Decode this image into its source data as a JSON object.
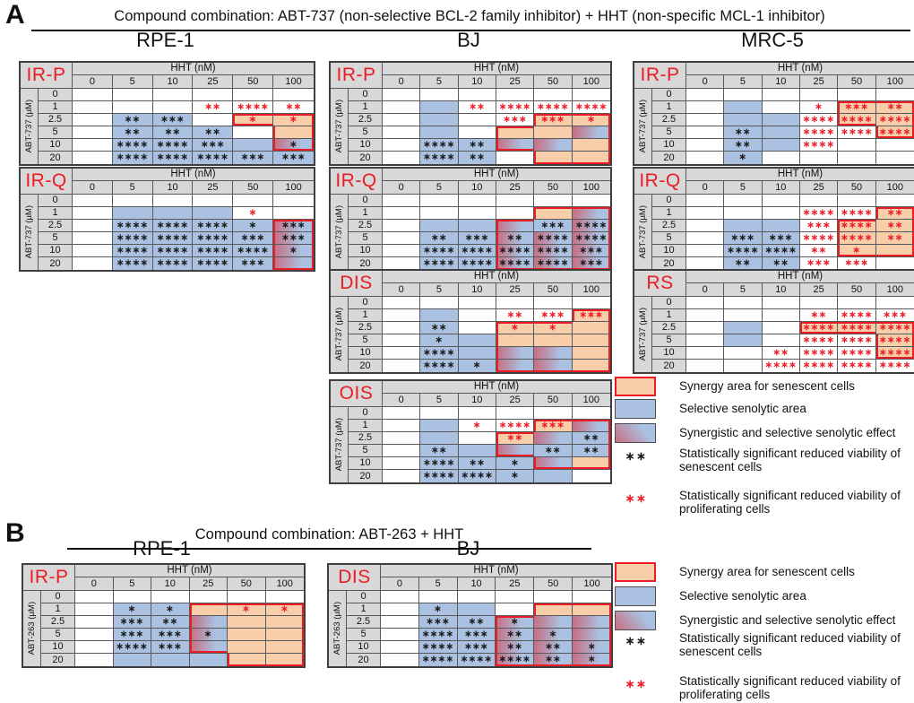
{
  "panels": [
    {
      "label": "A",
      "title": "Compound combination: ABT-737 (non-selective BCL-2 family inhibitor) + HHT (non-specific MCL-1 inhibitor)"
    },
    {
      "label": "B",
      "title": "Compound combination: ABT-263 + HHT"
    }
  ],
  "cell_line_titles": [
    {
      "panel": "A",
      "text": "RPE-1"
    },
    {
      "panel": "A",
      "text": "BJ"
    },
    {
      "panel": "A",
      "text": "MRC-5"
    },
    {
      "panel": "B",
      "text": "RPE-1"
    },
    {
      "panel": "B",
      "text": "BJ"
    }
  ],
  "axis": {
    "col_header": "HHT (nM)",
    "col_doses": [
      "0",
      "5",
      "10",
      "25",
      "50",
      "100"
    ],
    "row_doses": [
      "0",
      "1",
      "2.5",
      "5",
      "10",
      "20"
    ]
  },
  "cell_legend_note": "cell format fill|marks|markcolor|redborders ; fill w=white b=blue o=orange g=gradient ; markcolor k=black r=red ; redborders subset of TRBL",
  "tables": [
    {
      "panel": "A",
      "cell_line": "RPE-1",
      "condition": "IR-P",
      "drug": "ABT-737 (µM)",
      "cells": [
        [
          "w",
          "w",
          "w",
          "w",
          "w",
          "w"
        ],
        [
          "w",
          "w",
          "w",
          "w|**|r",
          "w|****|r",
          "w|**|r"
        ],
        [
          "w",
          "b|**|k",
          "b|***|k",
          "w",
          "o|*|r|TLB",
          "o|*|r|TR"
        ],
        [
          "w",
          "b|**|k",
          "b|**|k",
          "b|**|k",
          "w",
          "o|||LR"
        ],
        [
          "w",
          "b|****|k",
          "b|****|k",
          "b|***|k",
          "b",
          "g|*|k|LRB"
        ],
        [
          "w",
          "b|****|k",
          "b|****|k",
          "b|****|k",
          "b|***|k",
          "b|***|k"
        ]
      ]
    },
    {
      "panel": "A",
      "cell_line": "RPE-1",
      "condition": "IR-Q",
      "drug": "ABT-737 (µM)",
      "cells": [
        [
          "w",
          "w",
          "w",
          "w",
          "w",
          "w"
        ],
        [
          "w",
          "b",
          "b",
          "b",
          "w|*|r",
          "w"
        ],
        [
          "w",
          "b|****|k",
          "b|****|k",
          "b|****|k",
          "b|*|k",
          "g|***|k|TLR"
        ],
        [
          "w",
          "b|****|k",
          "b|****|k",
          "b|****|k",
          "b|***|k",
          "g|***|k|LR"
        ],
        [
          "w",
          "b|****|k",
          "b|****|k",
          "b|****|k",
          "b|****|k",
          "g|*|k|LR"
        ],
        [
          "w",
          "b|****|k",
          "b|****|k",
          "b|****|k",
          "b|***|k",
          "g|||LRB"
        ]
      ]
    },
    {
      "panel": "A",
      "cell_line": "BJ",
      "condition": "IR-P",
      "drug": "ABT-737 (µM)",
      "cells": [
        [
          "w",
          "w",
          "w",
          "w",
          "w",
          "w"
        ],
        [
          "w",
          "b",
          "w|**|r",
          "w|****|r",
          "w|****|r",
          "w|****|r"
        ],
        [
          "w",
          "b",
          "w",
          "w|***|r",
          "o|***|r|TL",
          "o|*|r|TR"
        ],
        [
          "w",
          "b",
          "w",
          "o|||TL",
          "o",
          "g|||R"
        ],
        [
          "w",
          "b|****|k",
          "b|**|k",
          "g|||LB",
          "g",
          "o|||R"
        ],
        [
          "w",
          "b|****|k",
          "b|**|k",
          "w",
          "o|||LB",
          "o|||RB"
        ]
      ]
    },
    {
      "panel": "A",
      "cell_line": "BJ",
      "condition": "IR-Q",
      "drug": "ABT-737 (µM)",
      "cells": [
        [
          "w",
          "w",
          "w",
          "w",
          "w",
          "w"
        ],
        [
          "w",
          "w",
          "w",
          "w",
          "o|||TL",
          "g|||TR"
        ],
        [
          "w",
          "b",
          "b",
          "g|||TL",
          "b|***|k",
          "g|****|k|R"
        ],
        [
          "w",
          "b|**|k",
          "b|***|k",
          "g|**|k|L",
          "g|****|k",
          "g|****|k|R"
        ],
        [
          "w",
          "b|****|k",
          "b|****|k",
          "g|****|k|L",
          "g|****|k",
          "g|***|k|R"
        ],
        [
          "w",
          "b|****|k",
          "b|****|k",
          "g|****|k|LB",
          "g|****|k|B",
          "g|***|k|RB"
        ]
      ]
    },
    {
      "panel": "A",
      "cell_line": "BJ",
      "condition": "DIS",
      "drug": "ABT-737 (µM)",
      "cells": [
        [
          "w",
          "w",
          "w",
          "w",
          "w",
          "w"
        ],
        [
          "w",
          "b",
          "w",
          "w|**|r",
          "w|***|r",
          "o|***|r|TLR"
        ],
        [
          "w",
          "b|**|k",
          "w",
          "o|*|r|TL",
          "o|*|r|T",
          "o|||R"
        ],
        [
          "w",
          "b|*|k",
          "b",
          "o|||L",
          "o",
          "o|||R"
        ],
        [
          "w",
          "b|****|k",
          "b",
          "g|||L",
          "g",
          "o|||R"
        ],
        [
          "w",
          "b|****|k",
          "b|*|k",
          "g|||LB",
          "g|||B",
          "o|||RB"
        ]
      ]
    },
    {
      "panel": "A",
      "cell_line": "BJ",
      "condition": "OIS",
      "drug": "ABT-737 (µM)",
      "cells": [
        [
          "w",
          "w",
          "w",
          "w",
          "w",
          "w"
        ],
        [
          "w",
          "b",
          "w|*|r",
          "w|****|r",
          "o|***|r|TL",
          "g|||TR"
        ],
        [
          "w",
          "b",
          "w",
          "o|**|r|TL",
          "g",
          "b|**|k|R"
        ],
        [
          "w",
          "b|**|k",
          "b",
          "g|||LB",
          "b|**|k",
          "b|**|k|R"
        ],
        [
          "w",
          "b|****|k",
          "b|**|k",
          "b|*|k",
          "g|||LB",
          "o|||RB"
        ],
        [
          "w",
          "b|****|k",
          "b|****|k",
          "b|*|k",
          "b",
          "w"
        ]
      ]
    },
    {
      "panel": "A",
      "cell_line": "MRC-5",
      "condition": "IR-P",
      "drug": "ABT-737 (µM)",
      "cells": [
        [
          "w",
          "w",
          "w",
          "w",
          "w",
          "w"
        ],
        [
          "w",
          "b",
          "w",
          "w|*|r",
          "o|***|r|TL",
          "o|**|r|TR"
        ],
        [
          "w",
          "b",
          "b",
          "w|****|r",
          "o|****|r|LB",
          "o|****|r|R"
        ],
        [
          "w",
          "b|**|k",
          "b",
          "w|****|r",
          "w|****|r",
          "o|****|r|LRB"
        ],
        [
          "w",
          "b|**|k",
          "b",
          "w|****|r",
          "w",
          "w"
        ],
        [
          "w",
          "b|*|k",
          "w",
          "w",
          "w",
          "w"
        ]
      ]
    },
    {
      "panel": "A",
      "cell_line": "MRC-5",
      "condition": "IR-Q",
      "drug": "ABT-737 (µM)",
      "cells": [
        [
          "w",
          "w",
          "w",
          "w",
          "w",
          "w"
        ],
        [
          "w",
          "w",
          "w",
          "w|****|r",
          "w|****|r",
          "o|**|r|TLR"
        ],
        [
          "w",
          "b",
          "b",
          "w|***|r",
          "o|****|r|TL",
          "o|**|r|R"
        ],
        [
          "w",
          "b|***|k",
          "b|***|k",
          "w|****|r",
          "o|****|r|L",
          "o|**|r|R"
        ],
        [
          "w",
          "b|****|k",
          "b|****|k",
          "w|**|r",
          "o|*|r|LB",
          "o|||RB"
        ],
        [
          "w",
          "b|**|k",
          "b|**|k",
          "w|***|r",
          "w|***|r",
          "w"
        ]
      ]
    },
    {
      "panel": "A",
      "cell_line": "MRC-5",
      "condition": "RS",
      "drug": "ABT-737 (µM)",
      "cells": [
        [
          "w",
          "w",
          "w",
          "w",
          "w",
          "w"
        ],
        [
          "w",
          "w",
          "w",
          "w|**|r",
          "w|****|r",
          "w|***|r"
        ],
        [
          "w",
          "b",
          "w",
          "o|****|r|TLB",
          "o|****|r|TB",
          "o|****|r|TR"
        ],
        [
          "w",
          "b",
          "w",
          "w|****|r",
          "w|****|r",
          "o|****|r|LR"
        ],
        [
          "w",
          "w",
          "w|**|r",
          "w|****|r",
          "w|****|r",
          "o|****|r|LRB"
        ],
        [
          "w",
          "w",
          "w|****|r",
          "w|****|r",
          "w|****|r",
          "w|****|r"
        ]
      ]
    },
    {
      "panel": "B",
      "cell_line": "RPE-1",
      "condition": "IR-P",
      "drug": "ABT-263 (µM)",
      "cells": [
        [
          "w",
          "w",
          "w",
          "w",
          "w",
          "w"
        ],
        [
          "w",
          "b|*|k",
          "b|*|k",
          "o|||TL",
          "o|*|r|T",
          "o|*|r|TR"
        ],
        [
          "w",
          "b|***|k",
          "b|**|k",
          "g|||L",
          "o",
          "o|||R"
        ],
        [
          "w",
          "b|***|k",
          "b|***|k",
          "g|*|k|L",
          "o",
          "o|||R"
        ],
        [
          "w",
          "b|****|k",
          "b|***|k",
          "g|||LB",
          "o",
          "o|||R"
        ],
        [
          "w",
          "b",
          "b",
          "b",
          "o|||LB",
          "o|||RB"
        ]
      ]
    },
    {
      "panel": "B",
      "cell_line": "BJ",
      "condition": "DIS",
      "drug": "ABT-263 (µM)",
      "cells": [
        [
          "w",
          "w",
          "w",
          "w",
          "w",
          "w"
        ],
        [
          "w",
          "b|*|k",
          "b",
          "w",
          "o|||TL",
          "o|||TR"
        ],
        [
          "w",
          "b|***|k",
          "b|**|k",
          "g|*|k|TL",
          "g",
          "g|||R"
        ],
        [
          "w",
          "b|****|k",
          "b|***|k",
          "g|**|k|L",
          "g|*|k",
          "g|||R"
        ],
        [
          "w",
          "b|****|k",
          "b|***|k",
          "g|**|k|L",
          "g|**|k",
          "g|*|k|R"
        ],
        [
          "w",
          "b|****|k",
          "b|****|k",
          "g|****|k|LB",
          "g|**|k|B",
          "g|*|k|RB"
        ]
      ]
    }
  ],
  "legend": {
    "items": [
      {
        "type": "swatch",
        "fill": "synergy",
        "label": "Synergy area for senescent cells"
      },
      {
        "type": "swatch",
        "fill": "senolytic",
        "label": "Selective senolytic area"
      },
      {
        "type": "swatch",
        "fill": "both",
        "label": "Synergistic and selective senolytic effect"
      },
      {
        "type": "stars",
        "color": "black",
        "stars": "**",
        "label": "Statistically significant reduced viability of senescent cells"
      },
      {
        "type": "stars",
        "color": "red",
        "stars": "**",
        "label": "Statistically significant reduced viability of proliferating cells"
      }
    ]
  },
  "colors": {
    "red": "#ec1c24",
    "orange": "#f7cdaa",
    "blue": "#aac1e1",
    "gradient_red": "#c96c80",
    "header_gray": "#d8d8d8",
    "grid": "#58595b",
    "black_mark": "#1a1a1a"
  }
}
